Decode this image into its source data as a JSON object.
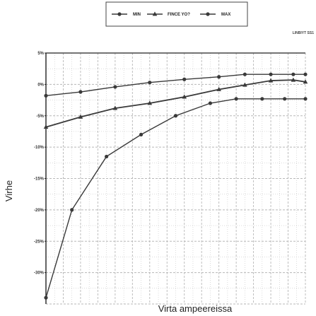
{
  "chart_data": {
    "type": "line",
    "title": "",
    "annotation": "LINBIYT SS1",
    "xlabel": "Virta ampeereissa",
    "ylabel": "Virhe",
    "xlim": [
      0,
      15
    ],
    "ylim": [
      -35,
      5
    ],
    "y_ticks": [
      "5%",
      "0%",
      "-5%",
      "-10%",
      "-15%",
      "-20%",
      "-25%",
      "-30%"
    ],
    "y_tick_values": [
      5,
      0,
      -5,
      -10,
      -15,
      -20,
      -25,
      -30
    ],
    "grid": true,
    "legend_position": "top-center",
    "series": [
      {
        "name": "MIN",
        "marker": "circle",
        "points": [
          [
            0,
            -34
          ],
          [
            1.5,
            -20
          ],
          [
            3.5,
            -11.5
          ],
          [
            5.5,
            -8
          ],
          [
            7.5,
            -5
          ],
          [
            9.5,
            -3
          ],
          [
            11,
            -2.3
          ],
          [
            12.5,
            -2.3
          ],
          [
            13.8,
            -2.3
          ],
          [
            15,
            -2.3
          ]
        ]
      },
      {
        "name": "FINCE YO?",
        "marker": "triangle",
        "points": [
          [
            0,
            -6.8
          ],
          [
            2,
            -5.2
          ],
          [
            4,
            -3.8
          ],
          [
            6,
            -3
          ],
          [
            8,
            -2
          ],
          [
            10,
            -0.8
          ],
          [
            11.5,
            -0.1
          ],
          [
            13,
            0.6
          ],
          [
            14.3,
            0.7
          ],
          [
            15,
            0.4
          ]
        ]
      },
      {
        "name": "MAX",
        "marker": "circle",
        "points": [
          [
            0,
            -1.8
          ],
          [
            2,
            -1.2
          ],
          [
            4,
            -0.4
          ],
          [
            6,
            0.3
          ],
          [
            8,
            0.8
          ],
          [
            10,
            1.2
          ],
          [
            11.5,
            1.6
          ],
          [
            13,
            1.6
          ],
          [
            14.3,
            1.6
          ],
          [
            15,
            1.6
          ]
        ]
      }
    ],
    "colors": {
      "line": "#3a3a3a",
      "grid": "#b8b8b8",
      "axis": "#222222"
    }
  }
}
